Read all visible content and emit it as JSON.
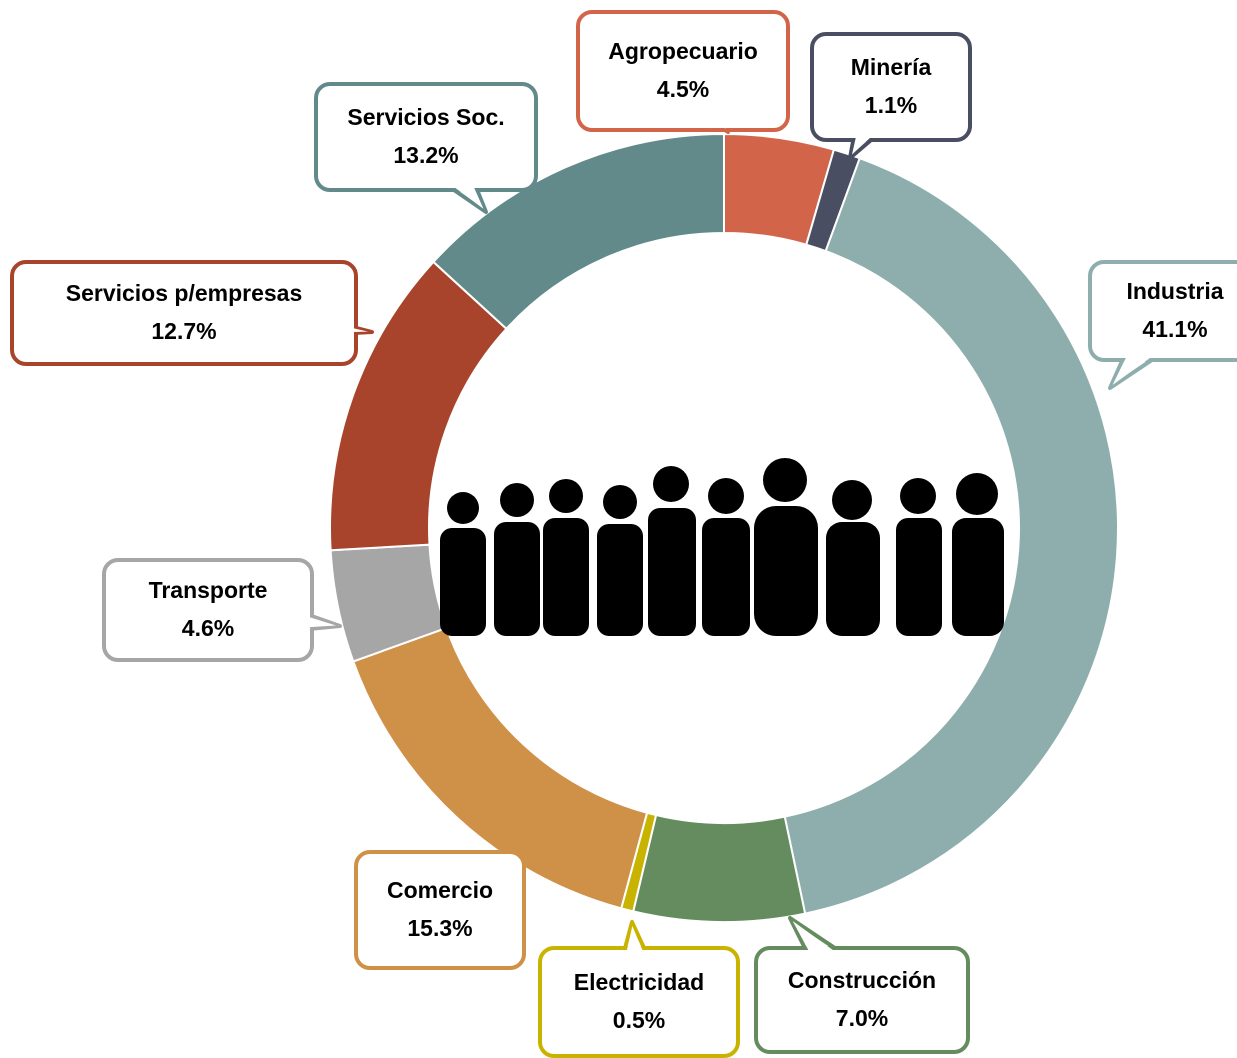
{
  "chart_data": {
    "type": "donut",
    "categories": [
      "Agropecuario",
      "Minería",
      "Industria",
      "Construcción",
      "Electricidad",
      "Comercio",
      "Transporte",
      "Servicios p/empresas",
      "Servicios Soc."
    ],
    "values": [
      4.5,
      1.1,
      41.1,
      7.0,
      0.5,
      15.3,
      4.6,
      12.7,
      13.2
    ],
    "value_labels": [
      "4.5%",
      "1.1%",
      "41.1%",
      "7.0%",
      "0.5%",
      "15.3%",
      "4.6%",
      "12.7%",
      "13.2%"
    ],
    "colors": [
      "#d2644a",
      "#4a4e62",
      "#8eaeae",
      "#648c5e",
      "#c8b400",
      "#cf9048",
      "#a6a6a6",
      "#a8442c",
      "#628a8a"
    ]
  }
}
